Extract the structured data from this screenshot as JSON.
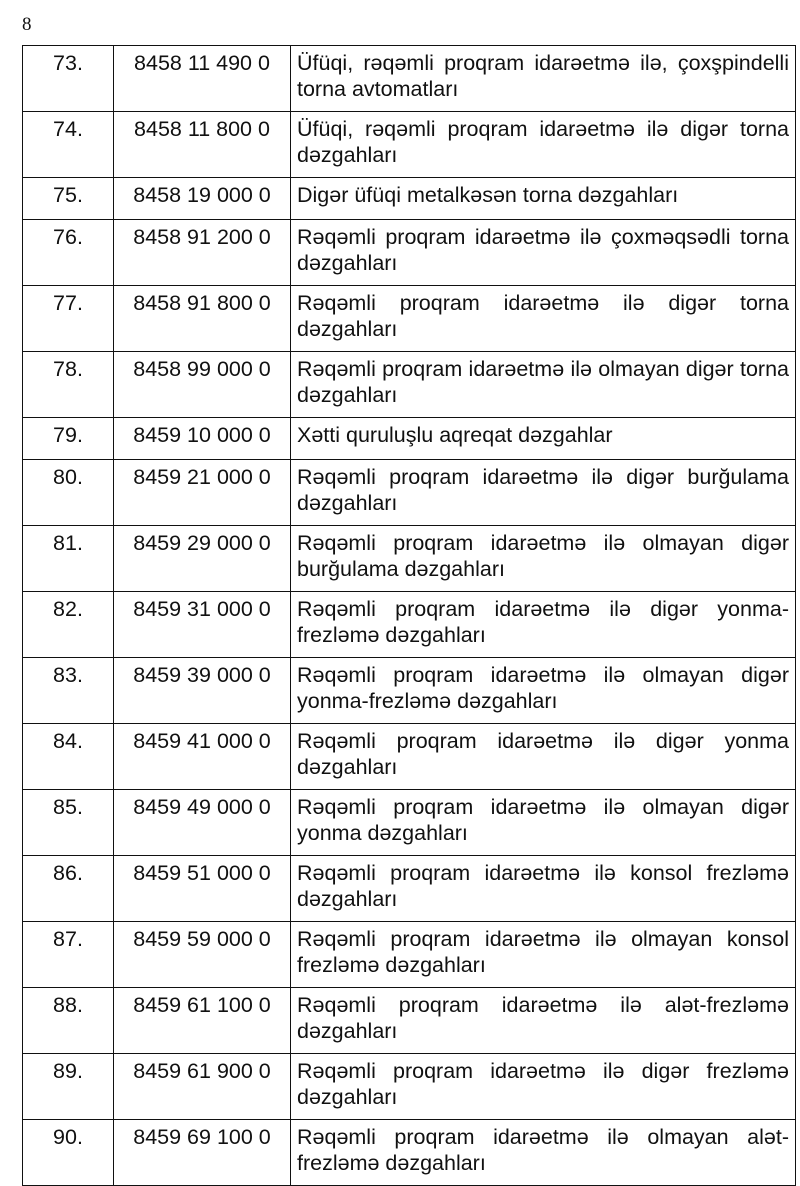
{
  "page_number": "8",
  "rows": [
    {
      "no": "73.",
      "code": "8458 11 490 0",
      "desc": "Üfüqi, rəqəmli proqram idarəetmə ilə, çoxşpindelli torna avtomatları"
    },
    {
      "no": "74.",
      "code": "8458 11 800 0",
      "desc": "Üfüqi, rəqəmli proqram idarəetmə ilə digər torna dəzgahları"
    },
    {
      "no": "75.",
      "code": "8458 19 000 0",
      "desc": "Digər üfüqi metalkəsən torna dəzgahları"
    },
    {
      "no": "76.",
      "code": "8458 91 200 0",
      "desc": "Rəqəmli proqram idarəetmə ilə çoxməqsədli torna dəzgahları"
    },
    {
      "no": "77.",
      "code": "8458 91 800 0",
      "desc": "Rəqəmli proqram idarəetmə ilə digər torna dəzgahları"
    },
    {
      "no": "78.",
      "code": "8458 99 000 0",
      "desc": "Rəqəmli proqram idarəetmə ilə olmayan digər torna dəzgahları"
    },
    {
      "no": "79.",
      "code": "8459 10 000 0",
      "desc": "Xətti quruluşlu aqreqat dəzgahlar"
    },
    {
      "no": "80.",
      "code": "8459 21 000 0",
      "desc": "Rəqəmli proqram idarəetmə ilə digər burğulama dəzgahları"
    },
    {
      "no": "81.",
      "code": "8459 29 000 0",
      "desc": "Rəqəmli proqram idarəetmə ilə olmayan digər burğulama dəzgahları"
    },
    {
      "no": "82.",
      "code": "8459 31 000 0",
      "desc": "Rəqəmli proqram idarəetmə ilə digər yonma-frezləmə dəzgahları"
    },
    {
      "no": "83.",
      "code": "8459 39 000 0",
      "desc": "Rəqəmli proqram idarəetmə ilə olmayan digər yonma-frezləmə dəzgahları"
    },
    {
      "no": "84.",
      "code": "8459 41 000 0",
      "desc": "Rəqəmli proqram idarəetmə ilə digər yonma dəzgahları"
    },
    {
      "no": "85.",
      "code": "8459 49 000 0",
      "desc": "Rəqəmli proqram idarəetmə ilə olmayan digər yonma dəzgahları"
    },
    {
      "no": "86.",
      "code": "8459 51 000 0",
      "desc": "Rəqəmli proqram idarəetmə ilə konsol frezləmə dəzgahları"
    },
    {
      "no": "87.",
      "code": "8459 59 000 0",
      "desc": "Rəqəmli proqram idarəetmə ilə olmayan konsol frezləmə dəzgahları"
    },
    {
      "no": "88.",
      "code": "8459 61 100 0",
      "desc": "Rəqəmli proqram idarəetmə ilə alət-frezləmə dəzgahları"
    },
    {
      "no": "89.",
      "code": "8459 61 900 0",
      "desc": "Rəqəmli proqram idarəetmə ilə digər frezləmə dəzgahları"
    },
    {
      "no": "90.",
      "code": "8459 69 100 0",
      "desc": "Rəqəmli proqram idarəetmə ilə olmayan alət-frezləmə dəzgahları"
    }
  ]
}
